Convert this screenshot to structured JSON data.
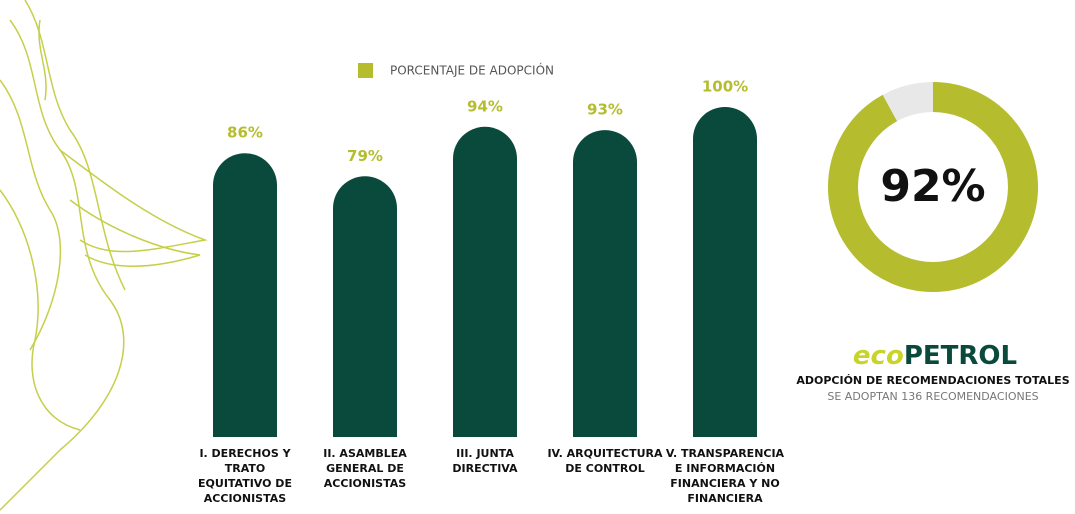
{
  "chart_data": [
    {
      "type": "bar",
      "categories": [
        "I. DERECHOS Y\nTRATO\nEQUITATIVO DE\nACCIONISTAS",
        "II. ASAMBLEA\nGENERAL DE\nACCIONISTAS",
        "III. JUNTA\nDIRECTIVA",
        "IV. ARQUITECTURA\nDE CONTROL",
        "V. TRANSPARENCIA\nE INFORMACIÓN\nFINANCIERA Y NO\nFINANCIERA"
      ],
      "series": [
        {
          "name": "PORCENTAJE DE ADOPCIÓN",
          "color": "#0a4a3c",
          "legend_color": "#b5bd2e",
          "values": [
            86,
            79,
            94,
            93,
            100
          ],
          "value_labels": [
            "86%",
            "79%",
            "94%",
            "93%",
            "100%"
          ]
        }
      ],
      "ylim": [
        0,
        100
      ]
    },
    {
      "type": "donut",
      "value": 92,
      "value_label": "92%",
      "range": [
        0,
        100
      ],
      "color": "#b5bd2e",
      "logo": [
        "eco",
        "PETROL"
      ],
      "title": "ADOPCIÓN DE RECOMENDACIONES TOTALES",
      "subtitle": "SE ADOPTAN 136 RECOMENDACIONES"
    }
  ]
}
